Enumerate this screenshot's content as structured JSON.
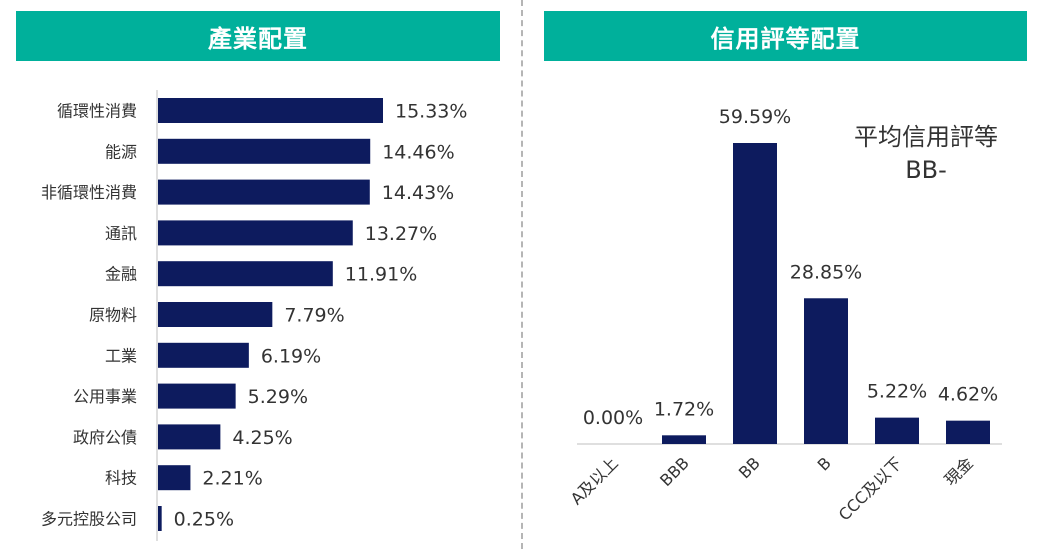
{
  "headers": {
    "left": "產業配置",
    "right": "信用評等配置"
  },
  "colors": {
    "header_bg": "#00B09B",
    "bar": "#0D1B5E"
  },
  "avg_rating": {
    "label": "平均信用評等",
    "value": "BB-"
  },
  "chart_data": [
    {
      "type": "bar",
      "orientation": "horizontal",
      "title": "產業配置",
      "categories": [
        "循環性消費",
        "能源",
        "非循環性消費",
        "通訊",
        "金融",
        "原物料",
        "工業",
        "公用事業",
        "政府公債",
        "科技",
        "多元控股公司"
      ],
      "values": [
        15.33,
        14.46,
        14.43,
        13.27,
        11.91,
        7.79,
        6.19,
        5.29,
        4.25,
        2.21,
        0.25
      ],
      "value_labels": [
        "15.33%",
        "14.46%",
        "14.43%",
        "13.27%",
        "11.91%",
        "7.79%",
        "6.19%",
        "5.29%",
        "4.25%",
        "2.21%",
        "0.25%"
      ],
      "xlim": [
        0,
        16
      ],
      "grid": false
    },
    {
      "type": "bar",
      "orientation": "vertical",
      "title": "信用評等配置",
      "categories": [
        "A及以上",
        "BBB",
        "BB",
        "B",
        "CCC及以下",
        "現金"
      ],
      "values": [
        0.0,
        1.72,
        59.59,
        28.85,
        5.22,
        4.62
      ],
      "value_labels": [
        "0.00%",
        "1.72%",
        "59.59%",
        "28.85%",
        "5.22%",
        "4.62%"
      ],
      "ylim": [
        0,
        63
      ],
      "grid": false
    }
  ]
}
